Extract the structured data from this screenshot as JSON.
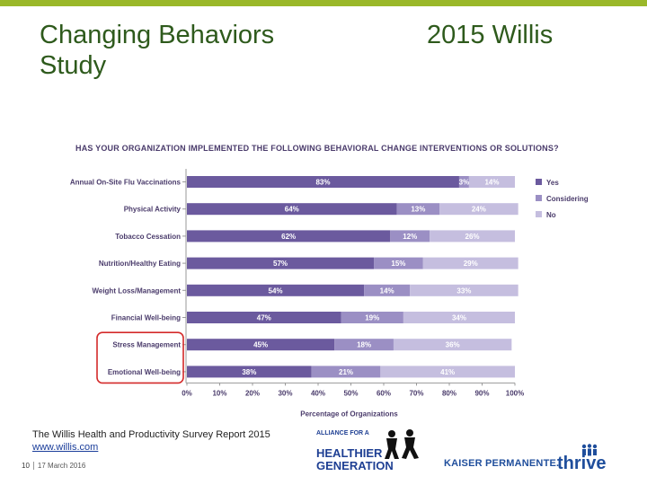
{
  "slide": {
    "title": "Changing Behaviors\nStudy",
    "right_title": "2015 Willis",
    "source_text": "The Willis Health and Productivity Survey Report 2015",
    "source_link": "www.willis.com",
    "page_number": "10",
    "date": "17 March 2016",
    "accent_color": "#9ab82a",
    "title_color": "#2e5a1c",
    "highlight_color": "#d42a2a"
  },
  "logos": {
    "ahg_small": "ALLIANCE FOR A",
    "ahg_line1": "HEALTHIER",
    "ahg_line2": "GENERATION",
    "kaiser": "KAISER PERMANENTE.",
    "thrive": "thrive"
  },
  "chart_data": {
    "type": "bar",
    "orientation": "horizontal",
    "stacked": true,
    "title": "HAS YOUR ORGANIZATION IMPLEMENTED THE FOLLOWING BEHAVIORAL CHANGE INTERVENTIONS OR SOLUTIONS?",
    "xlabel": "Percentage of Organizations",
    "ylabel": "",
    "xlim": [
      0,
      100
    ],
    "ticks": [
      "0%",
      "10%",
      "20%",
      "30%",
      "40%",
      "50%",
      "60%",
      "70%",
      "80%",
      "90%",
      "100%"
    ],
    "categories": [
      "Annual On-Site Flu Vaccinations",
      "Physical Activity",
      "Tobacco Cessation",
      "Nutrition/Healthy Eating",
      "Weight Loss/Management",
      "Financial Well-being",
      "Stress Management",
      "Emotional Well-being"
    ],
    "series": [
      {
        "name": "Yes",
        "color": "#6b5a9e",
        "values": [
          83,
          64,
          62,
          57,
          54,
          47,
          45,
          38
        ]
      },
      {
        "name": "Considering",
        "color": "#9b8fc4",
        "values": [
          3,
          13,
          12,
          15,
          14,
          19,
          18,
          21
        ]
      },
      {
        "name": "No",
        "color": "#c5bedf",
        "values": [
          14,
          24,
          26,
          29,
          33,
          34,
          36,
          41
        ]
      }
    ],
    "labels": [
      [
        "83%",
        "3%",
        "14%"
      ],
      [
        "64%",
        "13%",
        "24%"
      ],
      [
        "62%",
        "12%",
        "26%"
      ],
      [
        "57%",
        "15%",
        "29%"
      ],
      [
        "54%",
        "14%",
        "33%"
      ],
      [
        "47%",
        "19%",
        "34%"
      ],
      [
        "45%",
        "18%",
        "36%"
      ],
      [
        "38%",
        "21%",
        "41%"
      ]
    ],
    "grid": false,
    "legend_position": "right",
    "highlighted_categories": [
      "Stress Management",
      "Emotional Well-being"
    ]
  }
}
